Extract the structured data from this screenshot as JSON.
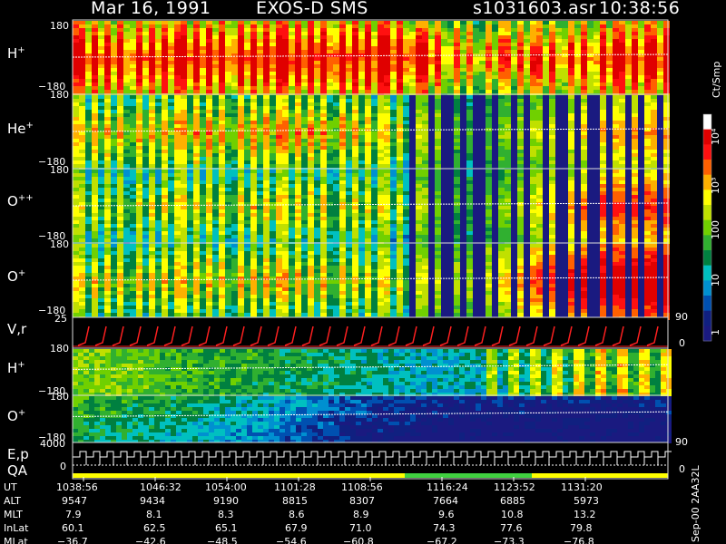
{
  "header": {
    "date": "Mar 16, 1991",
    "instrument": "EXOS-D SMS",
    "file": "s1031603.asr",
    "time": "10:38:56"
  },
  "panels": [
    {
      "key": "H_plus_1",
      "label": "H",
      "sup": "+",
      "top_tick": "180",
      "bottom_tick": "−180"
    },
    {
      "key": "He_plus",
      "label": "He",
      "sup": "+",
      "top_tick": "180",
      "bottom_tick": "−180"
    },
    {
      "key": "O_plusplus",
      "label": "O",
      "sup": "++",
      "top_tick": "180",
      "bottom_tick": "−180"
    },
    {
      "key": "O_plus_1",
      "label": "O",
      "sup": "+",
      "top_tick": "180",
      "bottom_tick": "−180"
    },
    {
      "key": "V_r",
      "label": "V,r",
      "sup": "",
      "top_tick": "25",
      "bottom_tick": "",
      "right_tick_top": "90",
      "right_tick_bottom": "0"
    },
    {
      "key": "H_plus_2",
      "label": "H",
      "sup": "+",
      "top_tick": "180",
      "bottom_tick": "−180"
    },
    {
      "key": "O_plus_2",
      "label": "O",
      "sup": "+",
      "top_tick": "180",
      "bottom_tick": "−180",
      "right_tick_bottom": "90"
    },
    {
      "key": "E_p_QA",
      "label": "E,p",
      "label2": "QA",
      "sup": "",
      "top_tick": "4000",
      "mid_tick": "0",
      "right_tick_bottom": "0"
    }
  ],
  "colorbar": {
    "unit": "Ct/Smp",
    "ticks": [
      "10⁴",
      "10³",
      "100",
      "10",
      "1"
    ],
    "stops": [
      "#ffffff",
      "#e00000",
      "#ff1010",
      "#ff6000",
      "#ffb000",
      "#ffff00",
      "#c0e000",
      "#70d000",
      "#30b030",
      "#008040",
      "#00c0c0",
      "#0090d0",
      "#0050b0",
      "#102080",
      "#1a1a80"
    ]
  },
  "footer": {
    "rows": [
      {
        "label": "UT",
        "values": [
          "1038:56",
          "1046:32",
          "1054:00",
          "1101:28",
          "1108:56",
          "1116:24",
          "1123:52",
          "1131:20"
        ]
      },
      {
        "label": "ALT",
        "values": [
          "9547",
          "9434",
          "9190",
          "8815",
          "8307",
          "7664",
          "6885",
          "5973"
        ]
      },
      {
        "label": "MLT",
        "values": [
          "7.9",
          "8.1",
          "8.3",
          "8.6",
          "8.9",
          "9.6",
          "10.8",
          "13.2"
        ]
      },
      {
        "label": "InLat",
        "values": [
          "60.1",
          "62.5",
          "65.1",
          "67.9",
          "71.0",
          "74.3",
          "77.6",
          "79.8"
        ]
      },
      {
        "label": "MLat",
        "values": [
          "−36.7",
          "−42.6",
          "−48.5",
          "−54.6",
          "−60.8",
          "−67.2",
          "−73.3",
          "−76.8"
        ]
      }
    ],
    "side_note": "Sep-00 2AA32L"
  },
  "chart_data": {
    "type": "heatmap",
    "title": "Mar 16, 1991   EXOS-D SMS",
    "x_ticks": [
      "1038:56",
      "1046:32",
      "1054:00",
      "1101:28",
      "1108:56",
      "1116:24",
      "1123:52",
      "1131:20"
    ],
    "colorbar_unit": "Ct/Smp",
    "colorbar_scale": "log",
    "colorbar_range": [
      1,
      10000
    ],
    "panels": [
      {
        "name": "H+",
        "ylim": [
          -180,
          180
        ],
        "intensity_profile": [
          0.7,
          0.72,
          0.74,
          0.75,
          0.76,
          0.75,
          0.55,
          0.62,
          0.7,
          0.72
        ]
      },
      {
        "name": "He+",
        "ylim": [
          -180,
          180
        ],
        "intensity_profile": [
          0.45,
          0.48,
          0.5,
          0.52,
          0.5,
          0.4,
          0.2,
          0.35,
          0.45,
          0.48
        ]
      },
      {
        "name": "O++",
        "ylim": [
          -180,
          180
        ],
        "intensity_profile": [
          0.38,
          0.4,
          0.42,
          0.44,
          0.42,
          0.36,
          0.18,
          0.4,
          0.55,
          0.58
        ]
      },
      {
        "name": "O+",
        "ylim": [
          -180,
          180
        ],
        "intensity_profile": [
          0.42,
          0.45,
          0.46,
          0.47,
          0.45,
          0.4,
          0.3,
          0.55,
          0.7,
          0.75
        ]
      },
      {
        "name": "V,r",
        "ylim": [
          0,
          25
        ]
      },
      {
        "name": "H+",
        "ylim": [
          -180,
          180
        ],
        "intensity_profile": [
          0.55,
          0.5,
          0.45,
          0.42,
          0.38,
          0.32,
          0.3,
          0.35,
          0.45,
          0.42
        ]
      },
      {
        "name": "O+",
        "ylim": [
          -180,
          180
        ],
        "intensity_profile": [
          0.48,
          0.44,
          0.38,
          0.3,
          0.2,
          0.12,
          0.1,
          0.1,
          0.1,
          0.1
        ]
      },
      {
        "name": "E,p",
        "ylim": [
          0,
          4000
        ]
      }
    ]
  }
}
